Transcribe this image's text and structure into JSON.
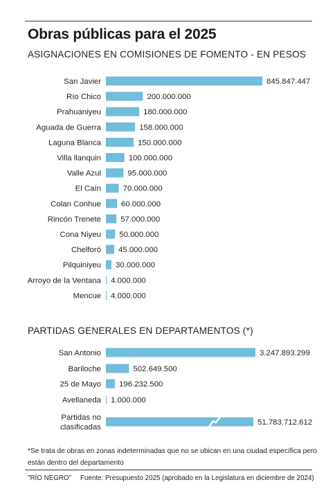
{
  "title": "Obras públicas para el 2025",
  "footnote": "*Se trata de obras en zonas indeterminadas que no se ubican en una ciudad específica pero están dentro del departamento",
  "footer": {
    "credit": "\"RÍO NEGRO\"",
    "source": "Fuente: Presupuesto 2025 (aprobado en la Legislatura en diciembre de 2024)"
  },
  "colors": {
    "bar": "#72bcdc",
    "text": "#1f1f1f",
    "break_mark": "#ffffff"
  },
  "chart_data": [
    {
      "type": "bar",
      "orientation": "horizontal",
      "title": "ASIGNACIONES EN COMISIONES DE FOMENTO - EN PESOS",
      "categories": [
        "San Javier",
        "Río Chico",
        "Prahuaniyeu",
        "Aguada de Guerra",
        "Laguna Blanca",
        "Villa llanquin",
        "Valle Azul",
        "El Caín",
        "Colan Conhue",
        "Rincón Trenete",
        "Cona Niyeu",
        "Chelforó",
        "Pilquiniyeu",
        "Arroyo de la Ventana",
        "Mencue"
      ],
      "values": [
        845847447,
        200000000,
        180000000,
        158000000,
        150000000,
        100000000,
        95000000,
        70000000,
        60000000,
        57000000,
        50000000,
        45000000,
        30000000,
        4000000,
        4000000
      ],
      "value_labels": [
        "845.847.447",
        "200.000.000",
        "180.000.000",
        "158.000.000",
        "150.000.000",
        "100.000.000",
        "95.000.000",
        "70.000.000",
        "60.000.000",
        "57.000.000",
        "50.000.000",
        "45.000.000",
        "30.000.000",
        "4.000.000",
        "4.000.000"
      ]
    },
    {
      "type": "bar",
      "orientation": "horizontal",
      "title": "PARTIDAS GENERALES EN DEPARTAMENTOS (*)",
      "categories": [
        "San Antonio",
        "Bariloche",
        "25 de Mayo",
        "Avellaneda",
        "Partidas no clasificadas"
      ],
      "values": [
        3247893299,
        502649500,
        196232500,
        1000000,
        51783712612
      ],
      "value_labels": [
        "3.247.893.299",
        "502.649.500",
        "196.232.500",
        "1.000.000",
        "51.783.712.612"
      ],
      "broken_axis_bar": "Partidas no clasificadas"
    }
  ]
}
